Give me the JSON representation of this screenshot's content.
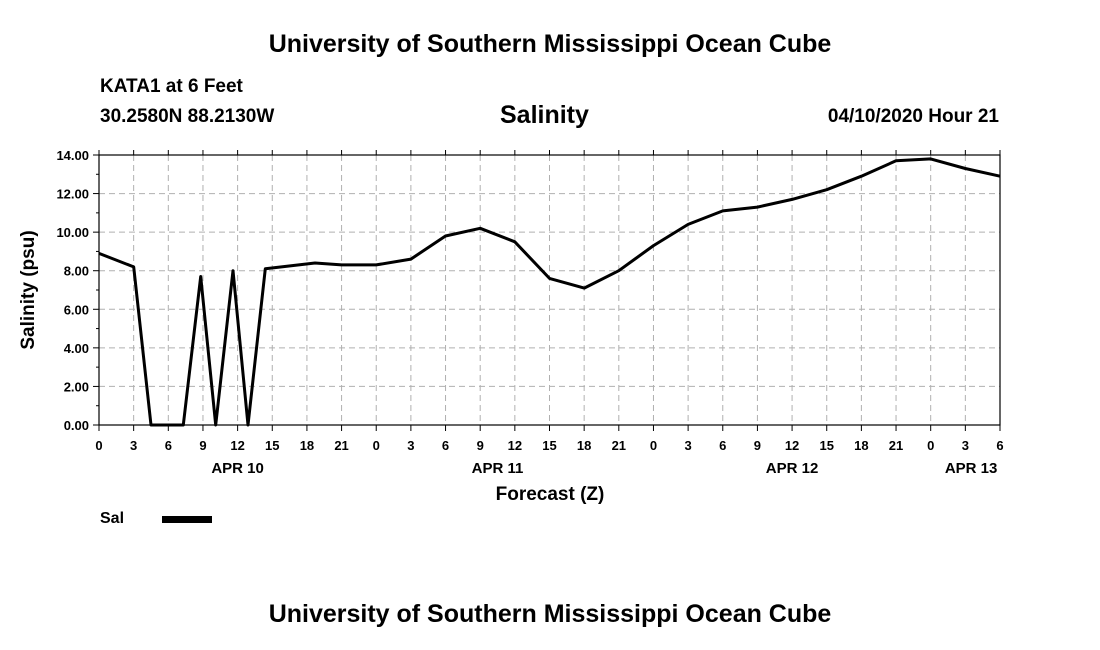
{
  "header": {
    "title_top": "University of Southern Mississippi Ocean Cube",
    "station": "KATA1 at 6 Feet",
    "coords": "30.2580N 88.2130W",
    "chart_title": "Salinity",
    "run_time": "04/10/2020 Hour 21"
  },
  "footer": {
    "title_bottom": "University of Southern Mississippi Ocean Cube"
  },
  "legend": {
    "label": "Sal",
    "color": "#000000"
  },
  "chart_data": {
    "type": "line",
    "title": "Salinity",
    "ylabel": "Salinity (psu)",
    "xlabel": "Forecast (Z)",
    "ylim": [
      0,
      14
    ],
    "xlim_hours": [
      0,
      78
    ],
    "grid": true,
    "y_ticks": [
      "0.00",
      "2.00",
      "4.00",
      "6.00",
      "8.00",
      "10.00",
      "12.00",
      "14.00"
    ],
    "x_tick_labels": [
      "0",
      "3",
      "6",
      "9",
      "12",
      "15",
      "18",
      "21",
      "0",
      "3",
      "6",
      "9",
      "12",
      "15",
      "18",
      "21",
      "0",
      "3",
      "6",
      "9",
      "12",
      "15",
      "18",
      "21",
      "0",
      "3",
      "6"
    ],
    "day_labels": [
      {
        "label": "APR 10",
        "hour": 12
      },
      {
        "label": "APR 11",
        "hour": 34.5
      },
      {
        "label": "APR 12",
        "hour": 60
      },
      {
        "label": "APR 13",
        "hour": 75.5
      }
    ],
    "series": [
      {
        "name": "Sal",
        "x": [
          0,
          3,
          4.5,
          7.3,
          8.8,
          10.1,
          11.6,
          12.9,
          14.4,
          18.7,
          21,
          24,
          27,
          30,
          33,
          36,
          39,
          42,
          45,
          48,
          51,
          54,
          57,
          60,
          63,
          66,
          69,
          72,
          75,
          78
        ],
        "y": [
          8.9,
          8.2,
          0.0,
          0.0,
          7.7,
          0.0,
          8.0,
          0.0,
          8.1,
          8.4,
          8.3,
          8.3,
          8.6,
          9.8,
          10.2,
          9.5,
          7.6,
          7.1,
          8.0,
          9.3,
          10.4,
          11.1,
          11.3,
          11.7,
          12.2,
          12.9,
          13.7,
          13.8,
          13.3,
          12.9
        ]
      }
    ]
  }
}
